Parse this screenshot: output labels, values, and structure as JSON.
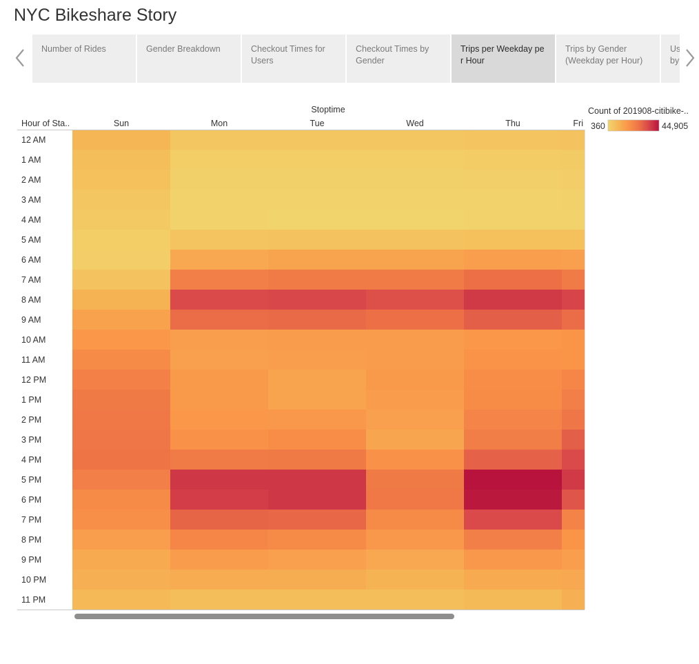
{
  "story": {
    "title": "NYC Bikeshare Story"
  },
  "nav": {
    "prev_icon": "chevron-left-icon",
    "next_icon": "chevron-right-icon"
  },
  "tabs": [
    {
      "label_lines": [
        "Number of Rides"
      ],
      "active": false
    },
    {
      "label_lines": [
        "Gender Breakdown"
      ],
      "active": false
    },
    {
      "label_lines": [
        "Checkout Times for",
        "Users"
      ],
      "active": false
    },
    {
      "label_lines": [
        "Checkout Times by",
        "Gender"
      ],
      "active": false
    },
    {
      "label_lines": [
        "Trips per Weekday pe",
        "r Hour"
      ],
      "active": true
    },
    {
      "label_lines": [
        "Trips by Gender",
        "(Weekday per Hour)"
      ],
      "active": false
    },
    {
      "label_lines": [
        "Us",
        "by"
      ],
      "active": false
    }
  ],
  "chart_data": {
    "type": "heatmap",
    "column_header": "Stoptime",
    "row_header": "Hour of Sta..",
    "columns": [
      "Sun",
      "Mon",
      "Tue",
      "Wed",
      "Thu",
      "Fri"
    ],
    "rows": [
      "12 AM",
      "1 AM",
      "2 AM",
      "3 AM",
      "4 AM",
      "5 AM",
      "6 AM",
      "7 AM",
      "8 AM",
      "9 AM",
      "10 AM",
      "11 AM",
      "12 PM",
      "1 PM",
      "2 PM",
      "3 PM",
      "4 PM",
      "5 PM",
      "6 PM",
      "7 PM",
      "8 PM",
      "9 PM",
      "10 PM",
      "11 PM"
    ],
    "values": [
      [
        9000,
        4500,
        4500,
        4500,
        5000,
        5500
      ],
      [
        7000,
        2500,
        2500,
        2500,
        2800,
        3000
      ],
      [
        6000,
        1500,
        1500,
        1500,
        1700,
        2000
      ],
      [
        4500,
        1000,
        800,
        800,
        1000,
        1200
      ],
      [
        3500,
        700,
        500,
        500,
        600,
        700
      ],
      [
        2500,
        5000,
        5500,
        5500,
        6000,
        6000
      ],
      [
        2000,
        13000,
        14000,
        14000,
        15500,
        15000
      ],
      [
        5500,
        24000,
        25000,
        25000,
        28000,
        25000
      ],
      [
        10000,
        35000,
        35500,
        34000,
        38000,
        36000
      ],
      [
        14500,
        28500,
        29000,
        28000,
        31000,
        28500
      ],
      [
        17500,
        15500,
        16000,
        16000,
        17500,
        18000
      ],
      [
        21000,
        15000,
        15500,
        16000,
        18500,
        18000
      ],
      [
        23500,
        16500,
        14000,
        16500,
        20000,
        22000
      ],
      [
        25500,
        16500,
        14000,
        16000,
        20500,
        24000
      ],
      [
        26000,
        17500,
        17000,
        15000,
        22500,
        26500
      ],
      [
        26500,
        19000,
        20000,
        13500,
        24500,
        31000
      ],
      [
        27000,
        25000,
        25500,
        19000,
        30500,
        35000
      ],
      [
        24000,
        38500,
        38500,
        25500,
        44905,
        38000
      ],
      [
        21000,
        37500,
        38500,
        26000,
        44000,
        33000
      ],
      [
        19500,
        30000,
        29500,
        21000,
        35000,
        23000
      ],
      [
        15500,
        22000,
        21000,
        17000,
        24000,
        18000
      ],
      [
        12500,
        16000,
        15000,
        13000,
        17000,
        15500
      ],
      [
        11000,
        12000,
        11500,
        10000,
        12500,
        13000
      ],
      [
        8500,
        7000,
        7000,
        7000,
        8000,
        11000
      ]
    ],
    "color_legend": {
      "title": "Count of 201908-citibike-..",
      "min": 360,
      "max": 44905,
      "min_label": "360",
      "max_label": "44,905"
    },
    "color_stops": [
      "#f2d46c",
      "#f5b655",
      "#fa9448",
      "#ee7446",
      "#d7454a",
      "#b8133c"
    ]
  }
}
